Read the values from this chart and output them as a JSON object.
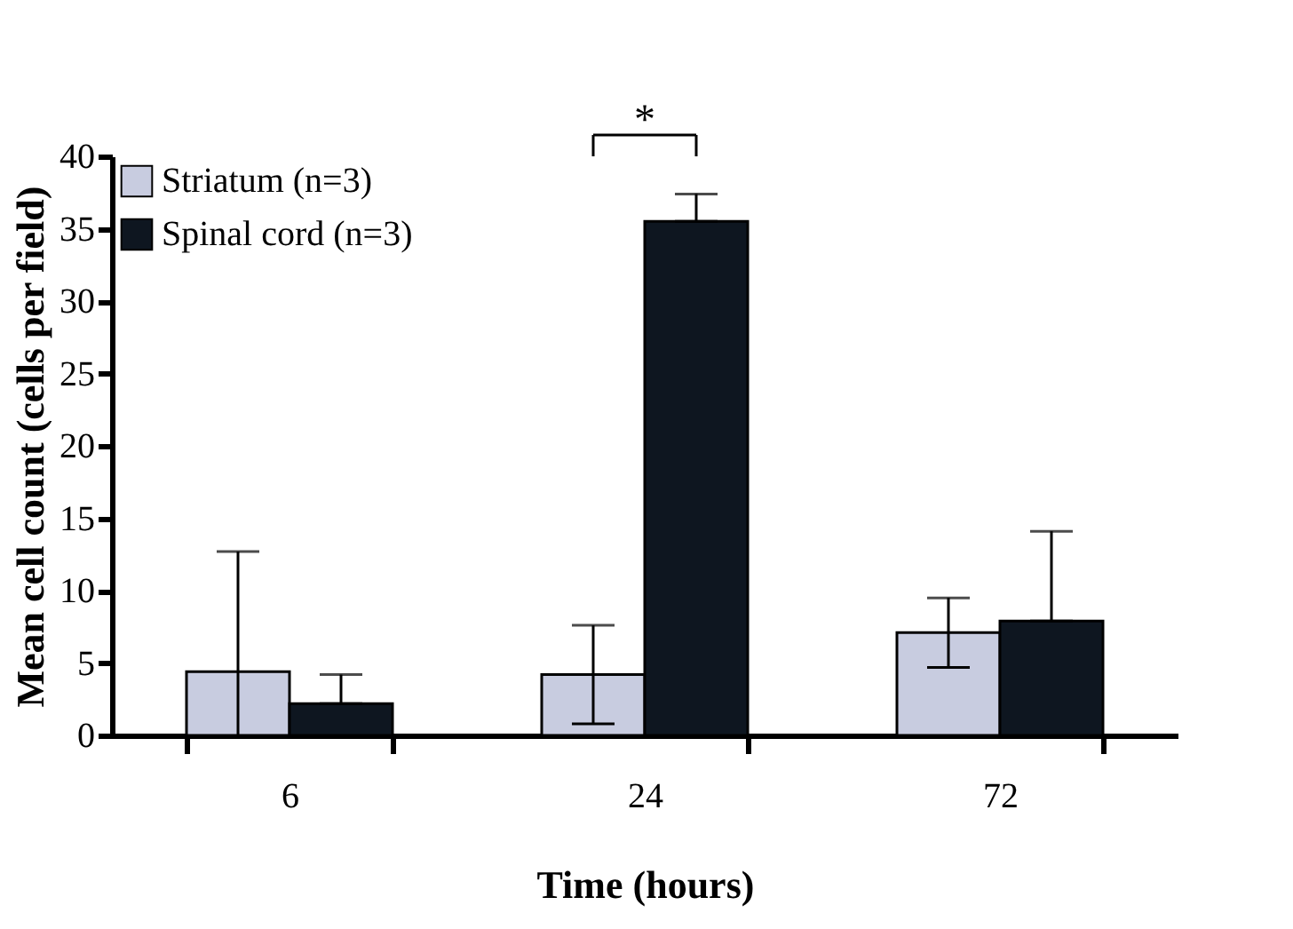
{
  "chart_data": {
    "type": "bar",
    "xlabel": "Time (hours)",
    "ylabel": "Mean cell count (cells per field)",
    "categories": [
      "6",
      "24",
      "72"
    ],
    "series": [
      {
        "name": "Striatum (n=3)",
        "color": "#c8cce0",
        "values": [
          4.4,
          4.2,
          7.1
        ],
        "errors": [
          [
            0,
            12.7
          ],
          3.4,
          2.4
        ]
      },
      {
        "name": "Spinal cord (n=3)",
        "color": "#0e1620",
        "values": [
          2.2,
          35.5,
          7.9
        ],
        "errors": [
          [
            2.2,
            4.2
          ],
          [
            35.5,
            37.4
          ],
          [
            7.9,
            14.1
          ]
        ]
      }
    ],
    "ylim": [
      0,
      40
    ],
    "yticks": [
      0,
      5,
      10,
      15,
      20,
      25,
      30,
      35,
      40
    ],
    "grid": false,
    "legend": "top left",
    "annotations": [
      "*"
    ]
  }
}
